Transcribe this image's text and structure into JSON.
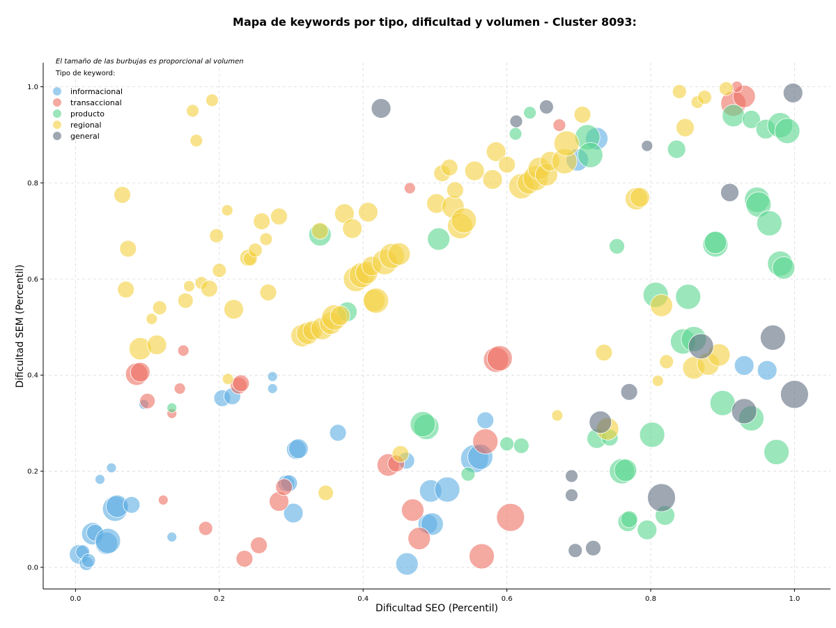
{
  "chart_data": {
    "type": "scatter",
    "title": "Mapa de keywords por tipo, dificultad y volumen - Cluster 8093:",
    "xlabel": "Dificultad SEO (Percentil)",
    "ylabel": "Dificultad SEM (Percentil)",
    "xlim": [
      -0.045,
      1.05
    ],
    "ylim": [
      -0.045,
      1.05
    ],
    "xticks": [
      "0.0",
      "0.2",
      "0.4",
      "0.6",
      "0.8",
      "1.0"
    ],
    "yticks": [
      "0.0",
      "0.2",
      "0.4",
      "0.6",
      "0.8",
      "1.0"
    ],
    "grid": true,
    "legend_placement": "top-left",
    "legend_note": "El tamaño de las burbujas es proporcional al volumen",
    "legend_title": "Tipo de keyword:",
    "series": [
      {
        "name": "informacional",
        "color": "#5dade2",
        "points": [
          [
            0.005,
            0.027,
            14
          ],
          [
            0.01,
            0.032,
            10
          ],
          [
            0.015,
            0.008,
            10
          ],
          [
            0.018,
            0.014,
            10
          ],
          [
            0.024,
            0.07,
            16
          ],
          [
            0.027,
            0.072,
            12
          ],
          [
            0.034,
            0.183,
            7
          ],
          [
            0.043,
            0.05,
            16
          ],
          [
            0.045,
            0.055,
            18
          ],
          [
            0.05,
            0.207,
            7
          ],
          [
            0.055,
            0.122,
            18
          ],
          [
            0.058,
            0.127,
            16
          ],
          [
            0.078,
            0.13,
            12
          ],
          [
            0.095,
            0.339,
            7
          ],
          [
            0.134,
            0.063,
            7
          ],
          [
            0.204,
            0.352,
            12
          ],
          [
            0.218,
            0.356,
            12
          ],
          [
            0.274,
            0.397,
            7
          ],
          [
            0.274,
            0.372,
            7
          ],
          [
            0.293,
            0.175,
            12
          ],
          [
            0.297,
            0.175,
            12
          ],
          [
            0.303,
            0.113,
            14
          ],
          [
            0.307,
            0.245,
            14
          ],
          [
            0.31,
            0.247,
            14
          ],
          [
            0.365,
            0.28,
            12
          ],
          [
            0.46,
            0.222,
            12
          ],
          [
            0.461,
            0.007,
            16
          ],
          [
            0.49,
            0.09,
            14
          ],
          [
            0.494,
            0.159,
            16
          ],
          [
            0.496,
            0.09,
            16
          ],
          [
            0.517,
            0.162,
            18
          ],
          [
            0.555,
            0.226,
            20
          ],
          [
            0.563,
            0.23,
            18
          ],
          [
            0.57,
            0.306,
            12
          ],
          [
            0.698,
            0.848,
            16
          ],
          [
            0.725,
            0.892,
            16
          ],
          [
            0.93,
            0.42,
            14
          ],
          [
            0.962,
            0.41,
            14
          ]
        ]
      },
      {
        "name": "transaccional",
        "color": "#ec7063",
        "points": [
          [
            0.085,
            0.402,
            16
          ],
          [
            0.09,
            0.406,
            14
          ],
          [
            0.1,
            0.346,
            11
          ],
          [
            0.122,
            0.14,
            7
          ],
          [
            0.134,
            0.32,
            7
          ],
          [
            0.145,
            0.372,
            8
          ],
          [
            0.15,
            0.451,
            8
          ],
          [
            0.181,
            0.081,
            10
          ],
          [
            0.227,
            0.378,
            12
          ],
          [
            0.23,
            0.383,
            12
          ],
          [
            0.235,
            0.018,
            12
          ],
          [
            0.255,
            0.046,
            12
          ],
          [
            0.283,
            0.137,
            14
          ],
          [
            0.29,
            0.167,
            12
          ],
          [
            0.435,
            0.213,
            16
          ],
          [
            0.446,
            0.216,
            12
          ],
          [
            0.465,
            0.789,
            8
          ],
          [
            0.469,
            0.119,
            16
          ],
          [
            0.478,
            0.06,
            16
          ],
          [
            0.565,
            0.023,
            18
          ],
          [
            0.57,
            0.262,
            18
          ],
          [
            0.585,
            0.432,
            18
          ],
          [
            0.59,
            0.435,
            18
          ],
          [
            0.605,
            0.104,
            20
          ],
          [
            0.673,
            0.92,
            9
          ],
          [
            0.915,
            0.965,
            18
          ],
          [
            0.93,
            0.98,
            16
          ],
          [
            0.92,
            1.0,
            8
          ]
        ]
      },
      {
        "name": "producto",
        "color": "#58d68d",
        "points": [
          [
            0.134,
            0.332,
            7
          ],
          [
            0.34,
            0.692,
            16
          ],
          [
            0.378,
            0.532,
            14
          ],
          [
            0.488,
            0.292,
            18
          ],
          [
            0.483,
            0.298,
            18
          ],
          [
            0.505,
            0.683,
            16
          ],
          [
            0.546,
            0.194,
            10
          ],
          [
            0.6,
            0.257,
            10
          ],
          [
            0.62,
            0.253,
            11
          ],
          [
            0.612,
            0.902,
            9
          ],
          [
            0.632,
            0.946,
            9
          ],
          [
            0.712,
            0.895,
            18
          ],
          [
            0.716,
            0.858,
            18
          ],
          [
            0.725,
            0.268,
            14
          ],
          [
            0.743,
            0.27,
            12
          ],
          [
            0.753,
            0.668,
            11
          ],
          [
            0.76,
            0.2,
            18
          ],
          [
            0.765,
            0.202,
            16
          ],
          [
            0.768,
            0.095,
            14
          ],
          [
            0.77,
            0.1,
            12
          ],
          [
            0.795,
            0.078,
            14
          ],
          [
            0.802,
            0.276,
            18
          ],
          [
            0.807,
            0.567,
            18
          ],
          [
            0.82,
            0.108,
            14
          ],
          [
            0.836,
            0.87,
            13
          ],
          [
            0.845,
            0.47,
            18
          ],
          [
            0.852,
            0.563,
            18
          ],
          [
            0.86,
            0.475,
            18
          ],
          [
            0.89,
            0.672,
            18
          ],
          [
            0.89,
            0.676,
            16
          ],
          [
            0.9,
            0.342,
            18
          ],
          [
            0.915,
            0.94,
            16
          ],
          [
            0.94,
            0.932,
            13
          ],
          [
            0.948,
            0.765,
            18
          ],
          [
            0.95,
            0.755,
            18
          ],
          [
            0.96,
            0.912,
            14
          ],
          [
            0.965,
            0.716,
            18
          ],
          [
            0.975,
            0.24,
            18
          ],
          [
            0.98,
            0.92,
            18
          ],
          [
            0.98,
            0.632,
            18
          ],
          [
            0.985,
            0.623,
            16
          ],
          [
            0.99,
            0.908,
            18
          ],
          [
            0.94,
            0.31,
            18
          ]
        ]
      },
      {
        "name": "regional",
        "color": "#f4d03f",
        "points": [
          [
            0.065,
            0.775,
            12
          ],
          [
            0.07,
            0.578,
            12
          ],
          [
            0.073,
            0.663,
            12
          ],
          [
            0.09,
            0.455,
            16
          ],
          [
            0.106,
            0.517,
            8
          ],
          [
            0.113,
            0.463,
            14
          ],
          [
            0.117,
            0.54,
            10
          ],
          [
            0.153,
            0.555,
            11
          ],
          [
            0.158,
            0.585,
            8
          ],
          [
            0.163,
            0.95,
            9
          ],
          [
            0.168,
            0.888,
            9
          ],
          [
            0.175,
            0.592,
            9
          ],
          [
            0.186,
            0.58,
            12
          ],
          [
            0.19,
            0.972,
            9
          ],
          [
            0.196,
            0.69,
            10
          ],
          [
            0.2,
            0.618,
            10
          ],
          [
            0.211,
            0.743,
            8
          ],
          [
            0.212,
            0.392,
            8
          ],
          [
            0.22,
            0.537,
            14
          ],
          [
            0.24,
            0.644,
            12
          ],
          [
            0.243,
            0.642,
            10
          ],
          [
            0.25,
            0.66,
            10
          ],
          [
            0.259,
            0.72,
            12
          ],
          [
            0.265,
            0.683,
            9
          ],
          [
            0.268,
            0.572,
            12
          ],
          [
            0.283,
            0.73,
            12
          ],
          [
            0.315,
            0.482,
            16
          ],
          [
            0.323,
            0.487,
            16
          ],
          [
            0.33,
            0.493,
            14
          ],
          [
            0.34,
            0.7,
            12
          ],
          [
            0.343,
            0.497,
            16
          ],
          [
            0.348,
            0.155,
            11
          ],
          [
            0.355,
            0.508,
            16
          ],
          [
            0.36,
            0.52,
            18
          ],
          [
            0.368,
            0.524,
            14
          ],
          [
            0.374,
            0.736,
            14
          ],
          [
            0.385,
            0.705,
            14
          ],
          [
            0.39,
            0.6,
            18
          ],
          [
            0.398,
            0.608,
            18
          ],
          [
            0.405,
            0.613,
            16
          ],
          [
            0.407,
            0.739,
            14
          ],
          [
            0.412,
            0.627,
            14
          ],
          [
            0.415,
            0.555,
            16
          ],
          [
            0.418,
            0.555,
            18
          ],
          [
            0.43,
            0.635,
            18
          ],
          [
            0.44,
            0.648,
            18
          ],
          [
            0.45,
            0.652,
            16
          ],
          [
            0.452,
            0.236,
            12
          ],
          [
            0.502,
            0.757,
            14
          ],
          [
            0.51,
            0.82,
            12
          ],
          [
            0.52,
            0.832,
            12
          ],
          [
            0.525,
            0.75,
            16
          ],
          [
            0.528,
            0.785,
            12
          ],
          [
            0.535,
            0.71,
            18
          ],
          [
            0.54,
            0.722,
            18
          ],
          [
            0.555,
            0.825,
            14
          ],
          [
            0.58,
            0.807,
            14
          ],
          [
            0.585,
            0.865,
            14
          ],
          [
            0.6,
            0.838,
            12
          ],
          [
            0.62,
            0.793,
            18
          ],
          [
            0.63,
            0.8,
            16
          ],
          [
            0.64,
            0.81,
            18
          ],
          [
            0.645,
            0.83,
            16
          ],
          [
            0.655,
            0.817,
            16
          ],
          [
            0.66,
            0.845,
            14
          ],
          [
            0.67,
            0.316,
            8
          ],
          [
            0.68,
            0.845,
            18
          ],
          [
            0.683,
            0.882,
            18
          ],
          [
            0.705,
            0.942,
            12
          ],
          [
            0.74,
            0.288,
            16
          ],
          [
            0.735,
            0.447,
            12
          ],
          [
            0.78,
            0.767,
            16
          ],
          [
            0.785,
            0.77,
            14
          ],
          [
            0.815,
            0.545,
            16
          ],
          [
            0.822,
            0.428,
            10
          ],
          [
            0.81,
            0.388,
            8
          ],
          [
            0.84,
            0.99,
            10
          ],
          [
            0.848,
            0.915,
            13
          ],
          [
            0.86,
            0.415,
            16
          ],
          [
            0.865,
            0.968,
            9
          ],
          [
            0.875,
            0.978,
            10
          ],
          [
            0.88,
            0.423,
            16
          ],
          [
            0.895,
            0.442,
            16
          ],
          [
            0.905,
            0.996,
            10
          ]
        ]
      },
      {
        "name": "general",
        "color": "#5d6d7e",
        "points": [
          [
            0.425,
            0.955,
            14
          ],
          [
            0.613,
            0.928,
            9
          ],
          [
            0.655,
            0.958,
            10
          ],
          [
            0.69,
            0.19,
            9
          ],
          [
            0.69,
            0.15,
            9
          ],
          [
            0.695,
            0.035,
            10
          ],
          [
            0.72,
            0.04,
            11
          ],
          [
            0.73,
            0.302,
            16
          ],
          [
            0.77,
            0.365,
            12
          ],
          [
            0.795,
            0.877,
            8
          ],
          [
            0.815,
            0.145,
            20
          ],
          [
            0.87,
            0.46,
            18
          ],
          [
            0.91,
            0.78,
            13
          ],
          [
            0.93,
            0.325,
            18
          ],
          [
            0.97,
            0.478,
            18
          ],
          [
            0.998,
            0.987,
            14
          ],
          [
            1.0,
            0.36,
            20
          ]
        ]
      }
    ]
  }
}
